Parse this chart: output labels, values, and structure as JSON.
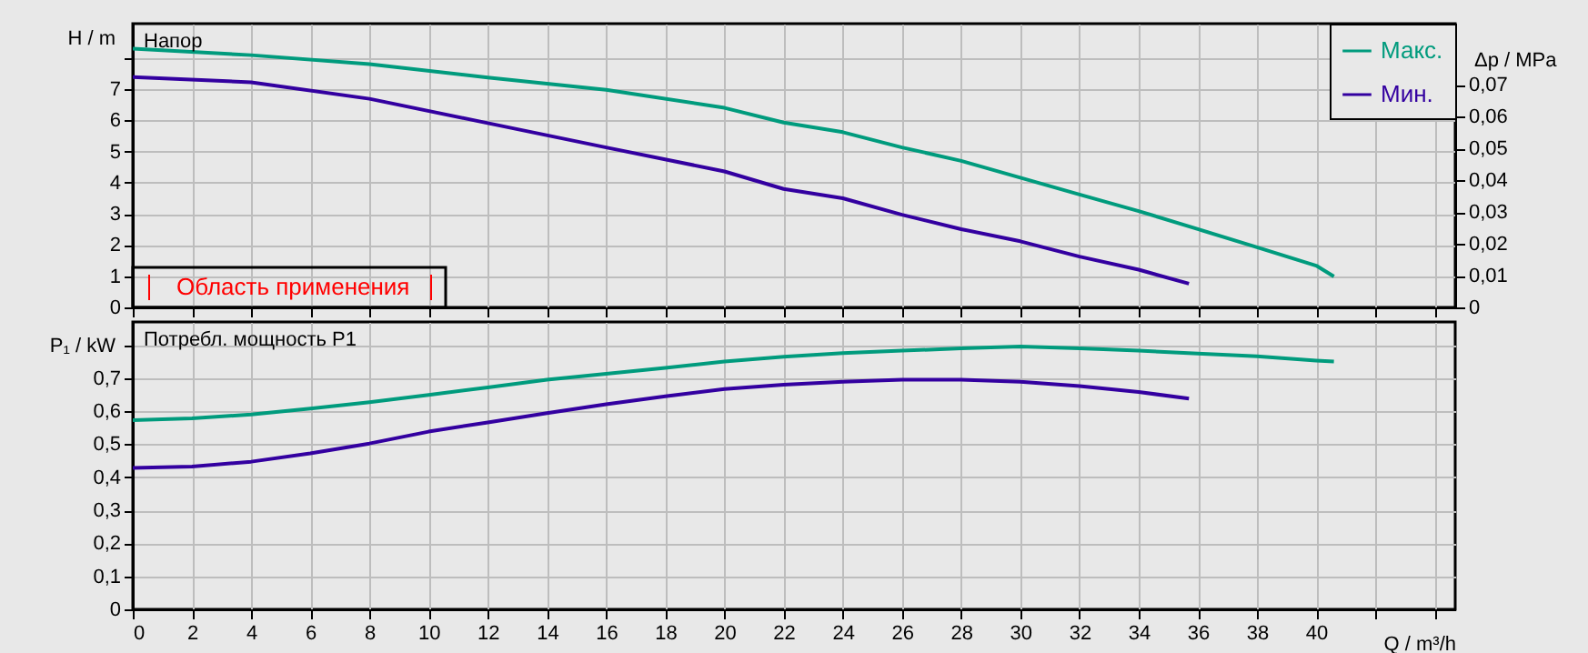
{
  "chart_data": [
    {
      "type": "line",
      "ylabel": "H / m",
      "y2label": "Δp / MPa",
      "annotations": [
        "Напор",
        "Область применения"
      ],
      "xlim": [
        0,
        44.7
      ],
      "xticks": [
        0,
        2,
        4,
        6,
        8,
        10,
        12,
        14,
        16,
        18,
        20,
        22,
        24,
        26,
        28,
        30,
        32,
        34,
        36,
        38,
        40,
        42,
        44
      ],
      "ylim": [
        0,
        9.1
      ],
      "yticks": [
        0,
        1,
        2,
        3,
        4,
        5,
        6,
        7,
        {
          "value": 8,
          "label": null
        }
      ],
      "y2lim": [
        0,
        0.0892
      ],
      "y2ticks": [
        0,
        {
          "value": 0.01,
          "label": "0,01"
        },
        {
          "value": 0.02,
          "label": "0,02"
        },
        {
          "value": 0.03,
          "label": "0,03"
        },
        {
          "value": 0.04,
          "label": "0,04"
        },
        {
          "value": 0.05,
          "label": "0,05"
        },
        {
          "value": 0.06,
          "label": "0,06"
        },
        {
          "value": 0.07,
          "label": "0,07"
        }
      ],
      "grid": true,
      "legend": "top right",
      "tick_labels": "y",
      "series": [
        {
          "name": "Макс.",
          "color": "#009b7d",
          "x": [
            0,
            4,
            8,
            12,
            16,
            20,
            22,
            24,
            26,
            28,
            30,
            32,
            34,
            36,
            38,
            40,
            40.6
          ],
          "values": [
            8.3,
            8.09,
            7.8,
            7.37,
            6.98,
            6.4,
            5.93,
            5.62,
            5.13,
            4.7,
            4.16,
            3.62,
            3.09,
            2.51,
            1.93,
            1.34,
            0.99
          ]
        },
        {
          "name": "Мин.",
          "color": "#3300a0",
          "x": [
            0,
            4,
            8,
            12,
            16,
            20,
            22,
            24,
            26,
            28,
            30,
            32,
            34,
            35.7
          ],
          "values": [
            7.39,
            7.22,
            6.69,
            5.91,
            5.13,
            4.36,
            3.8,
            3.5,
            2.97,
            2.51,
            2.12,
            1.63,
            1.21,
            0.76
          ]
        }
      ]
    },
    {
      "type": "line",
      "ylabel": "P₁ / kW",
      "xlabel": "Q / m³/h",
      "annotations": [
        "Потребл. мощность P1"
      ],
      "xlim": [
        0,
        44.7
      ],
      "xticks": [
        0,
        2,
        4,
        6,
        8,
        10,
        12,
        14,
        16,
        18,
        20,
        22,
        24,
        26,
        28,
        30,
        32,
        34,
        36,
        38,
        40,
        {
          "value": 42,
          "label": null
        },
        {
          "value": 44,
          "label": null
        }
      ],
      "ylim": [
        0,
        0.87
      ],
      "yticks": [
        0,
        {
          "value": 0.1,
          "label": "0,1"
        },
        {
          "value": 0.2,
          "label": "0,2"
        },
        {
          "value": 0.3,
          "label": "0,3"
        },
        {
          "value": 0.4,
          "label": "0,4"
        },
        {
          "value": 0.5,
          "label": "0,5"
        },
        {
          "value": 0.6,
          "label": "0,6"
        },
        {
          "value": 0.7,
          "label": "0,7"
        },
        {
          "value": 0.8,
          "label": null
        }
      ],
      "grid": true,
      "series": [
        {
          "color": "#009b7d",
          "x": [
            0,
            2,
            4,
            6,
            8,
            10,
            12,
            14,
            16,
            18,
            20,
            22,
            24,
            26,
            28,
            30,
            32,
            34,
            36,
            38,
            40,
            40.6
          ],
          "values": [
            0.573,
            0.578,
            0.59,
            0.608,
            0.627,
            0.649,
            0.672,
            0.695,
            0.713,
            0.731,
            0.75,
            0.765,
            0.776,
            0.783,
            0.79,
            0.796,
            0.79,
            0.783,
            0.774,
            0.766,
            0.753,
            0.75
          ]
        },
        {
          "color": "#3300a0",
          "x": [
            0,
            2,
            4,
            6,
            8,
            10,
            12,
            14,
            16,
            18,
            20,
            22,
            24,
            26,
            28,
            30,
            32,
            34,
            35.7
          ],
          "values": [
            0.428,
            0.432,
            0.447,
            0.472,
            0.502,
            0.538,
            0.566,
            0.594,
            0.621,
            0.645,
            0.667,
            0.68,
            0.689,
            0.695,
            0.695,
            0.689,
            0.676,
            0.658,
            0.638
          ]
        }
      ]
    }
  ]
}
